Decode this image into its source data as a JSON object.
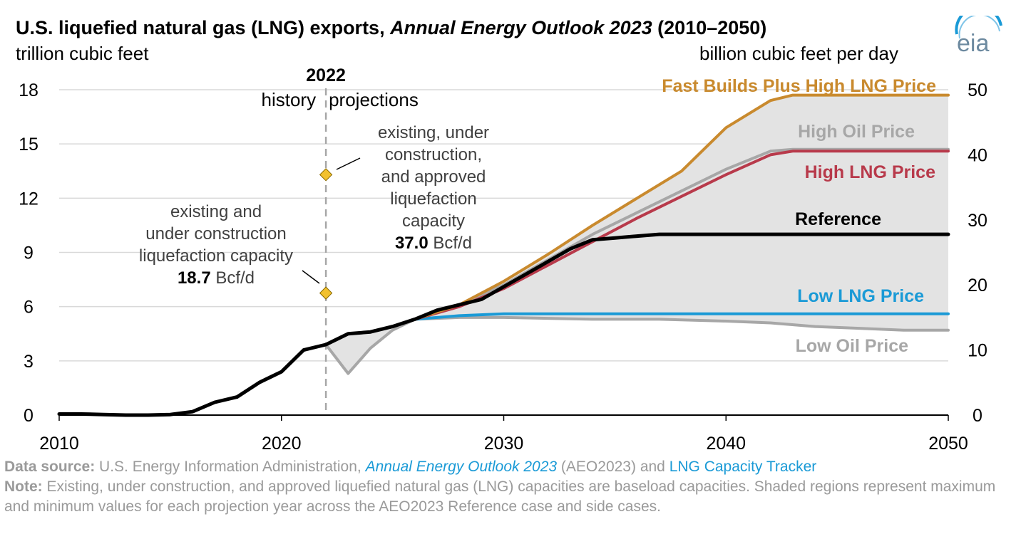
{
  "header": {
    "title_pre": "U.S. liquefied natural gas (LNG) exports, ",
    "title_italic": "Annual Energy Outlook 2023",
    "title_post": " (2010–2050)",
    "left_unit": "trillion cubic feet",
    "right_unit": "billion cubic feet per day",
    "logo_text": "eia"
  },
  "chart_data": {
    "type": "line",
    "title": "U.S. liquefied natural gas (LNG) exports, Annual Energy Outlook 2023 (2010–2050)",
    "xlabel": "",
    "ylabel_left": "trillion cubic feet",
    "ylabel_right": "billion cubic feet per day",
    "xlim": [
      2010,
      2050
    ],
    "ylim": [
      0,
      18
    ],
    "y2lim": [
      0,
      50
    ],
    "x_ticks": [
      2010,
      2020,
      2030,
      2040,
      2050
    ],
    "y_ticks": [
      0,
      3,
      6,
      9,
      12,
      15,
      18
    ],
    "y2_ticks": [
      0,
      10,
      20,
      30,
      40,
      50
    ],
    "grid": true,
    "divider": {
      "year": 2022,
      "label": "2022",
      "left_label": "history",
      "right_label": "projections"
    },
    "shaded_region": "maximum and minimum across cases",
    "series": [
      {
        "name": "Fast Builds Plus High LNG Price",
        "color": "#c98a2e",
        "x": [
          2026,
          2028,
          2030,
          2032,
          2034,
          2036,
          2038,
          2040,
          2042,
          2043,
          2046,
          2050
        ],
        "values": [
          5.3,
          6.1,
          7.4,
          8.9,
          10.5,
          12.0,
          13.5,
          15.9,
          17.4,
          17.7,
          17.7,
          17.7
        ]
      },
      {
        "name": "High Oil Price",
        "color": "#a7a7a7",
        "x": [
          2026,
          2028,
          2030,
          2032,
          2034,
          2036,
          2038,
          2040,
          2042,
          2043,
          2046,
          2050
        ],
        "values": [
          5.3,
          6.1,
          7.2,
          8.6,
          10.0,
          11.2,
          12.4,
          13.6,
          14.6,
          14.7,
          14.7,
          14.7
        ]
      },
      {
        "name": "High LNG Price",
        "color": "#b83a4b",
        "x": [
          2026,
          2028,
          2030,
          2032,
          2034,
          2036,
          2038,
          2040,
          2042,
          2043,
          2046,
          2050
        ],
        "values": [
          5.3,
          6.0,
          7.0,
          8.3,
          9.6,
          10.9,
          12.1,
          13.3,
          14.4,
          14.6,
          14.6,
          14.6
        ]
      },
      {
        "name": "Reference",
        "color": "#000000",
        "x": [
          2010,
          2011,
          2012,
          2013,
          2014,
          2015,
          2016,
          2017,
          2018,
          2019,
          2020,
          2021,
          2022,
          2023,
          2024,
          2025,
          2026,
          2027,
          2028,
          2029,
          2030,
          2031,
          2032,
          2033,
          2034,
          2035,
          2036,
          2037,
          2038,
          2040,
          2042,
          2044,
          2046,
          2048,
          2050
        ],
        "values": [
          0.06,
          0.06,
          0.03,
          0.0,
          0.0,
          0.03,
          0.19,
          0.71,
          1.0,
          1.8,
          2.4,
          3.6,
          3.9,
          4.5,
          4.6,
          4.9,
          5.3,
          5.8,
          6.1,
          6.4,
          7.1,
          7.8,
          8.5,
          9.2,
          9.7,
          9.8,
          9.9,
          10.0,
          10.0,
          10.0,
          10.0,
          10.0,
          10.0,
          10.0,
          10.0
        ]
      },
      {
        "name": "Low LNG Price",
        "color": "#1a9ad6",
        "x": [
          2026,
          2027,
          2028,
          2030,
          2035,
          2040,
          2045,
          2050
        ],
        "values": [
          5.3,
          5.4,
          5.5,
          5.6,
          5.6,
          5.6,
          5.6,
          5.6
        ]
      },
      {
        "name": "Low Oil Price",
        "color": "#a7a7a7",
        "x": [
          2022,
          2023,
          2024,
          2025,
          2026,
          2028,
          2030,
          2034,
          2037,
          2040,
          2042,
          2044,
          2046,
          2048,
          2050
        ],
        "values": [
          3.9,
          2.3,
          3.7,
          4.7,
          5.3,
          5.4,
          5.4,
          5.3,
          5.3,
          5.2,
          5.1,
          4.9,
          4.8,
          4.7,
          4.7
        ]
      }
    ],
    "series_labels": [
      {
        "series": "Fast Builds Plus High LNG Price",
        "text": "Fast Builds Plus High LNG Price",
        "color": "#c98a2e"
      },
      {
        "series": "High Oil Price",
        "text": "High Oil Price",
        "color": "#a7a7a7"
      },
      {
        "series": "High LNG Price",
        "text": "High LNG Price",
        "color": "#b83a4b"
      },
      {
        "series": "Reference",
        "text": "Reference",
        "color": "#000000"
      },
      {
        "series": "Low LNG Price",
        "text": "Low LNG Price",
        "color": "#1a9ad6"
      },
      {
        "series": "Low Oil Price",
        "text": "Low Oil Price",
        "color": "#a7a7a7"
      }
    ],
    "capacity_markers": [
      {
        "x": 2022,
        "y": 6.75,
        "color": "#f2c12e",
        "lines": [
          "existing and",
          "under construction",
          "liquefaction capacity"
        ],
        "value_bold": "18.7",
        "value_unit": " Bcf/d"
      },
      {
        "x": 2022,
        "y": 13.3,
        "color": "#f2c12e",
        "lines": [
          "existing, under",
          "construction,",
          "and approved",
          "liquefaction",
          "capacity"
        ],
        "value_bold": "37.0",
        "value_unit": " Bcf/d"
      }
    ]
  },
  "footer": {
    "source_label": "Data source:",
    "source_text": " U.S. Energy Information Administration, ",
    "source_link1": "Annual Energy Outlook 2023",
    "source_mid": " (AEO2023) and ",
    "source_link2": "LNG Capacity Tracker",
    "note_label": "Note:",
    "note_text": " Existing, under construction, and approved liquefied natural gas (LNG) capacities are baseload capacities. Shaded regions represent maximum and minimum values for each projection year across the AEO2023 Reference case and side cases."
  }
}
